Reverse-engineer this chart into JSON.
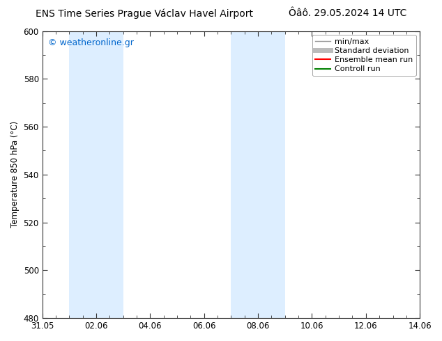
{
  "title_left": "ENS Time Series Prague Václav Havel Airport",
  "title_right": "Ôâô. 29.05.2024 14 UTC",
  "ylabel": "Temperature 850 hPa (°C)",
  "xlim": [
    0,
    14
  ],
  "ylim": [
    480,
    600
  ],
  "yticks": [
    480,
    500,
    520,
    540,
    560,
    580,
    600
  ],
  "xtick_positions": [
    0,
    2,
    4,
    6,
    8,
    10,
    12,
    14
  ],
  "xtick_labels": [
    "31.05",
    "02.06",
    "04.06",
    "06.06",
    "08.06",
    "10.06",
    "12.06",
    "14.06"
  ],
  "shaded_bands": [
    {
      "x_start": 1.0,
      "x_end": 3.0
    },
    {
      "x_start": 7.0,
      "x_end": 9.0
    }
  ],
  "band_color": "#ddeeff",
  "watermark_text": "© weatheronline.gr",
  "watermark_color": "#0066cc",
  "legend_items": [
    {
      "label": "min/max",
      "color": "#999999",
      "lw": 1.0
    },
    {
      "label": "Standard deviation",
      "color": "#bbbbbb",
      "lw": 5.0
    },
    {
      "label": "Ensemble mean run",
      "color": "#ff0000",
      "lw": 1.5
    },
    {
      "label": "Controll run",
      "color": "#008000",
      "lw": 1.5
    }
  ],
  "bg_color": "#ffffff",
  "title_fontsize": 10,
  "tick_fontsize": 8.5,
  "ylabel_fontsize": 8.5,
  "watermark_fontsize": 9,
  "legend_fontsize": 8
}
